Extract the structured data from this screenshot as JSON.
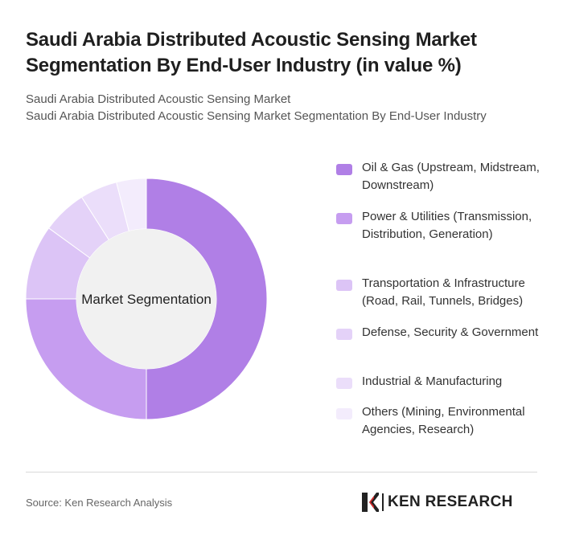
{
  "header": {
    "title": "Saudi Arabia Distributed Acoustic Sensing Market Segmentation By End-User Industry (in value %)",
    "subtitle_line1": "Saudi Arabia Distributed Acoustic Sensing Market",
    "subtitle_line2": "Saudi Arabia Distributed Acoustic Sensing Market Segmentation By End-User Industry"
  },
  "chart_data": {
    "type": "pie",
    "center_label": "Market Segmentation",
    "legend_placement": "right",
    "categories": [
      "Oil & Gas (Upstream, Midstream, Downstream)",
      "Power & Utilities (Transmission, Distribution, Generation)",
      "Transportation & Infrastructure (Road, Rail, Tunnels, Bridges)",
      "Defense, Security & Government",
      "Industrial & Manufacturing",
      "Others (Mining, Environmental Agencies, Research)"
    ],
    "values": [
      50,
      25,
      10,
      6,
      5,
      4
    ],
    "colors": [
      "#b07fe6",
      "#c69df0",
      "#dcc4f6",
      "#e4d2f8",
      "#ebdefa",
      "#f3ecfc"
    ]
  },
  "footer": {
    "source": "Source: Ken Research Analysis",
    "brand": "KEN RESEARCH"
  }
}
